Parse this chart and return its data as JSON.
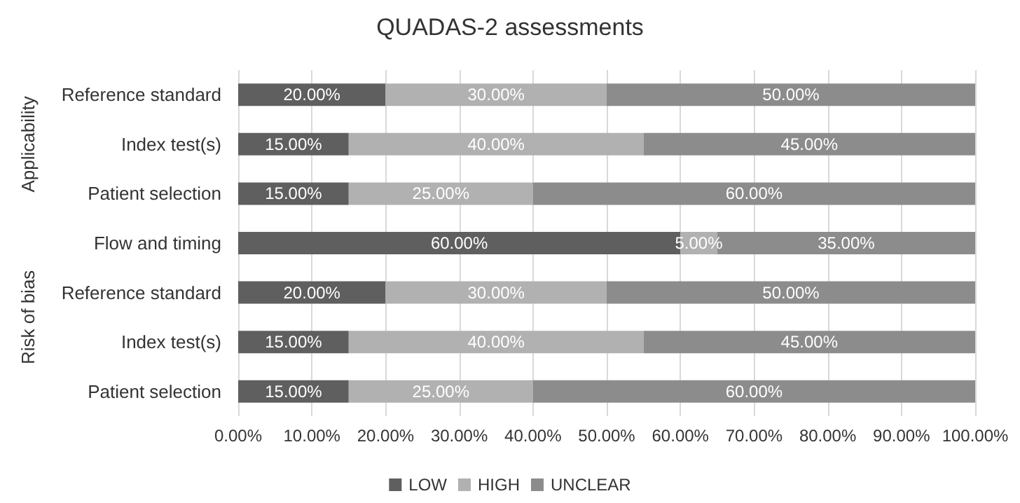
{
  "chart_data": {
    "type": "bar",
    "orientation": "horizontal",
    "stacked": true,
    "title": "QUADAS-2 assessments",
    "categories": [
      "Reference standard",
      "Index test(s)",
      "Patient selection",
      "Flow and timing",
      "Reference standard",
      "Index test(s)",
      "Patient selection"
    ],
    "series": [
      {
        "name": "LOW",
        "color": "#5f5f5f",
        "values": [
          20,
          15,
          15,
          60,
          20,
          15,
          15
        ],
        "value_labels": [
          "20.00%",
          "15.00%",
          "15.00%",
          "60.00%",
          "20.00%",
          "15.00%",
          "15.00%"
        ]
      },
      {
        "name": "HIGH",
        "color": "#b1b1b1",
        "values": [
          30,
          40,
          25,
          5,
          30,
          40,
          25
        ],
        "value_labels": [
          "30.00%",
          "40.00%",
          "25.00%",
          "5.00%",
          "30.00%",
          "40.00%",
          "25.00%"
        ]
      },
      {
        "name": "UNCLEAR",
        "color": "#8c8c8c",
        "values": [
          50,
          45,
          60,
          35,
          50,
          45,
          60
        ],
        "value_labels": [
          "50.00%",
          "45.00%",
          "60.00%",
          "35.00%",
          "50.00%",
          "45.00%",
          "60.00%"
        ]
      }
    ],
    "xlim": [
      0,
      100
    ],
    "xticks": [
      {
        "value": 0,
        "label": "0.00%"
      },
      {
        "value": 10,
        "label": "10.00%"
      },
      {
        "value": 20,
        "label": "20.00%"
      },
      {
        "value": 30,
        "label": "30.00%"
      },
      {
        "value": 40,
        "label": "40.00%"
      },
      {
        "value": 50,
        "label": "50.00%"
      },
      {
        "value": 60,
        "label": "60.00%"
      },
      {
        "value": 70,
        "label": "70.00%"
      },
      {
        "value": 80,
        "label": "80.00%"
      },
      {
        "value": 90,
        "label": "90.00%"
      },
      {
        "value": 100,
        "label": "100.00%"
      }
    ],
    "annotations": [
      "Applicability",
      "Risk of bias"
    ],
    "grid": "x",
    "legend": "bottom"
  }
}
